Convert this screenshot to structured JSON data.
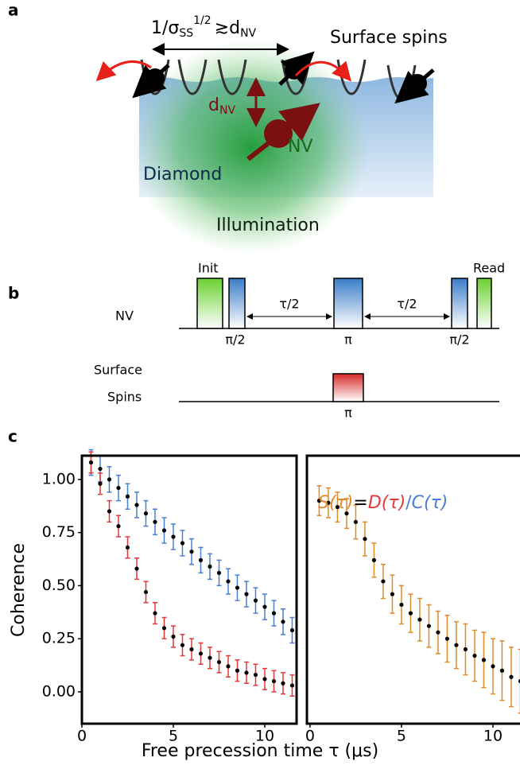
{
  "panel_labels": [
    "a",
    "b",
    "c"
  ],
  "diagram_a": {
    "spacing": {
      "text": "1/σ",
      "sub": "SS",
      "sup": "1/2",
      "rel": "≳d",
      "sub2": "NV"
    },
    "surface_spins": "Surface spins",
    "depth": {
      "text": "d",
      "sub": "NV"
    },
    "nv": "NV",
    "diamond": "Diamond",
    "illumination": "Illumination"
  },
  "diagram_b": {
    "nv": "NV",
    "init": "Init",
    "read": "Read",
    "half_pi_1": "π/2",
    "tau_half_1": "τ/2",
    "pi_nv": "π",
    "tau_half_2": "τ/2",
    "half_pi_2": "π/2",
    "surface": "Surface",
    "spins": "Spins",
    "pi_surface": "π"
  },
  "chart_data": [
    {
      "type": "scatter",
      "ylabel": "Coherence",
      "xlabel": "Free precession time τ (μs)",
      "xlim": [
        0,
        11.74
      ],
      "ylim": [
        -0.15,
        1.112
      ],
      "xticks": [
        0,
        5,
        10
      ],
      "yticks": [
        {
          "value": 0,
          "label": "0.00"
        },
        {
          "value": 0.25,
          "label": "0.25"
        },
        {
          "value": 0.5,
          "label": "0.50"
        },
        {
          "value": 0.75,
          "label": "0.75"
        },
        {
          "value": 1,
          "label": "1.00"
        }
      ],
      "x": [
        0.5,
        1,
        1.5,
        2,
        2.5,
        3,
        3.5,
        4,
        4.5,
        5,
        5.5,
        6,
        6.5,
        7,
        7.5,
        8,
        8.5,
        9,
        9.5,
        10,
        10.5,
        11,
        11.5
      ],
      "series": [
        {
          "name": "C(τ)",
          "color": "#4a7fd6",
          "values": [
            1.08,
            1.05,
            1.0,
            0.96,
            0.92,
            0.88,
            0.84,
            0.8,
            0.76,
            0.73,
            0.7,
            0.66,
            0.62,
            0.59,
            0.56,
            0.52,
            0.49,
            0.46,
            0.43,
            0.4,
            0.37,
            0.33,
            0.29
          ],
          "errors": [
            0.06,
            0.06,
            0.06,
            0.06,
            0.06,
            0.06,
            0.06,
            0.06,
            0.06,
            0.06,
            0.06,
            0.06,
            0.06,
            0.06,
            0.06,
            0.06,
            0.06,
            0.06,
            0.06,
            0.06,
            0.06,
            0.06,
            0.06
          ]
        },
        {
          "name": "D(τ)",
          "color": "#e03a3a",
          "values": [
            1.08,
            0.98,
            0.85,
            0.78,
            0.68,
            0.58,
            0.47,
            0.37,
            0.3,
            0.26,
            0.22,
            0.2,
            0.18,
            0.16,
            0.14,
            0.12,
            0.1,
            0.09,
            0.08,
            0.06,
            0.05,
            0.04,
            0.03
          ],
          "errors": [
            0.05,
            0.05,
            0.05,
            0.05,
            0.05,
            0.05,
            0.05,
            0.05,
            0.05,
            0.05,
            0.05,
            0.05,
            0.05,
            0.05,
            0.05,
            0.05,
            0.05,
            0.05,
            0.05,
            0.05,
            0.05,
            0.05,
            0.05
          ]
        }
      ]
    },
    {
      "type": "scatter",
      "xlim": [
        -0.17,
        11.48
      ],
      "ylim": [
        -0.15,
        1.112
      ],
      "xticks": [
        0,
        5,
        10
      ],
      "legend_ops": [
        "=",
        "/"
      ],
      "x": [
        0.5,
        1,
        1.5,
        2,
        2.5,
        3,
        3.5,
        4,
        4.5,
        5,
        5.5,
        6,
        6.5,
        7,
        7.5,
        8,
        8.5,
        9,
        9.5,
        10,
        10.5,
        11,
        11.5
      ],
      "series": [
        {
          "name": "S(τ)",
          "color": "#e08a2c",
          "values": [
            0.9,
            0.89,
            0.87,
            0.84,
            0.8,
            0.72,
            0.62,
            0.52,
            0.46,
            0.41,
            0.37,
            0.34,
            0.31,
            0.28,
            0.25,
            0.22,
            0.2,
            0.17,
            0.15,
            0.12,
            0.1,
            0.07,
            0.05
          ],
          "errors": [
            0.07,
            0.07,
            0.07,
            0.07,
            0.08,
            0.08,
            0.08,
            0.08,
            0.09,
            0.09,
            0.09,
            0.1,
            0.1,
            0.1,
            0.11,
            0.11,
            0.12,
            0.12,
            0.13,
            0.13,
            0.14,
            0.14,
            0.15
          ]
        }
      ]
    }
  ]
}
